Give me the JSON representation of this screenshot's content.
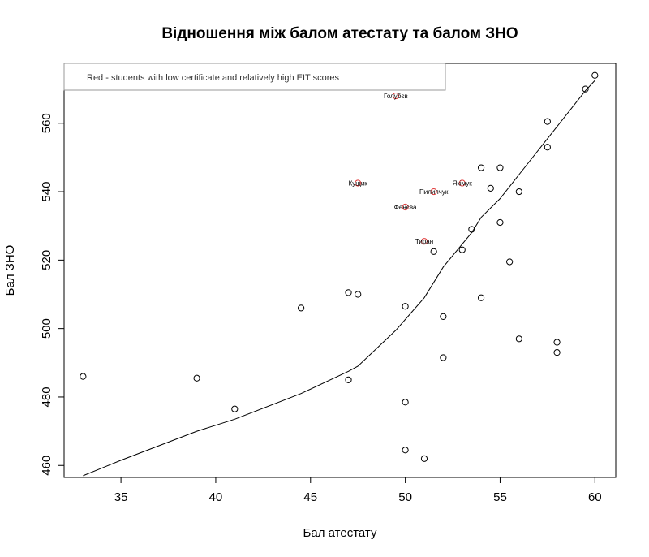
{
  "chart_data": {
    "type": "scatter",
    "title": "Відношення між балом атестату та балом ЗНО",
    "xlabel": "Бал атестату",
    "ylabel": "Бал ЗНО",
    "xlim": [
      32,
      61.1
    ],
    "ylim": [
      456.5,
      577.5
    ],
    "xticks": [
      35,
      40,
      45,
      50,
      55,
      60
    ],
    "yticks": [
      460,
      480,
      500,
      520,
      540,
      560
    ],
    "grid": false,
    "legend": {
      "position": "top-left",
      "text": "Red - students with low certificate and relatively high EIT scores"
    },
    "colors": {
      "points": "#000000",
      "highlight": "#e03c3c",
      "line": "#000000"
    },
    "points": [
      {
        "x": 33,
        "y": 486
      },
      {
        "x": 39,
        "y": 485.5
      },
      {
        "x": 41,
        "y": 476.5
      },
      {
        "x": 44.5,
        "y": 506
      },
      {
        "x": 47,
        "y": 510.5
      },
      {
        "x": 47,
        "y": 485
      },
      {
        "x": 47.5,
        "y": 510
      },
      {
        "x": 50,
        "y": 506.5
      },
      {
        "x": 50,
        "y": 478.5
      },
      {
        "x": 50,
        "y": 464.5
      },
      {
        "x": 51,
        "y": 462
      },
      {
        "x": 51.5,
        "y": 522.5
      },
      {
        "x": 52,
        "y": 503.5
      },
      {
        "x": 52,
        "y": 491.5
      },
      {
        "x": 53,
        "y": 523
      },
      {
        "x": 53.5,
        "y": 529
      },
      {
        "x": 54,
        "y": 547
      },
      {
        "x": 54,
        "y": 509
      },
      {
        "x": 54.5,
        "y": 541
      },
      {
        "x": 55,
        "y": 547
      },
      {
        "x": 55,
        "y": 531
      },
      {
        "x": 55.5,
        "y": 519.5
      },
      {
        "x": 56,
        "y": 540
      },
      {
        "x": 56,
        "y": 497
      },
      {
        "x": 57.5,
        "y": 560.5
      },
      {
        "x": 57.5,
        "y": 553
      },
      {
        "x": 58,
        "y": 496
      },
      {
        "x": 58,
        "y": 493
      },
      {
        "x": 59.5,
        "y": 570
      },
      {
        "x": 60,
        "y": 574
      }
    ],
    "highlighted": [
      {
        "x": 49.5,
        "y": 568,
        "label": "Голубєв"
      },
      {
        "x": 47.5,
        "y": 542.5,
        "label": "Кущик"
      },
      {
        "x": 51.5,
        "y": 540,
        "label": "Пилипчук"
      },
      {
        "x": 53,
        "y": 542.5,
        "label": "Якімук"
      },
      {
        "x": 50,
        "y": 535.5,
        "label": "Фенєва"
      },
      {
        "x": 51,
        "y": 525.5,
        "label": "Тиран"
      }
    ],
    "trend_line": {
      "x": [
        33,
        35,
        39,
        41,
        44.5,
        47,
        47.5,
        49.5,
        51,
        52,
        53.5,
        54,
        55,
        56,
        57.5,
        59.5,
        60
      ],
      "y": [
        457,
        461.5,
        470,
        473.5,
        481,
        487.5,
        489,
        499.5,
        509,
        518,
        528,
        532.5,
        538,
        545,
        555.5,
        569.5,
        572.5
      ]
    }
  }
}
